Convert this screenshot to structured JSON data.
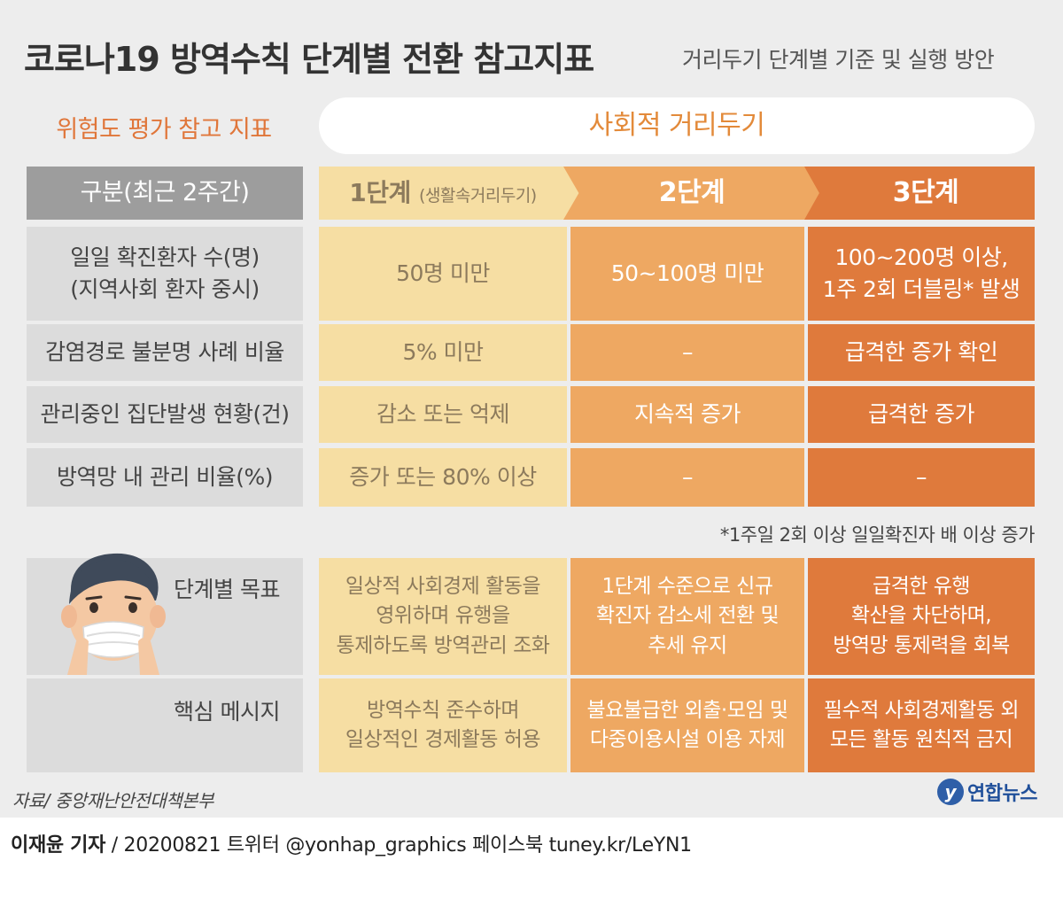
{
  "title": "코로나19 방역수칙 단계별 전환 참고지표",
  "subtitle": "거리두기 단계별 기준 및 실행 방안",
  "risk_label": "위험도 평가 참고 지표",
  "social_distancing_label": "사회적 거리두기",
  "header": {
    "category": "구분(최근 2주간)",
    "stage1_main": "1단계",
    "stage1_sub": "(생활속거리두기)",
    "stage2": "2단계",
    "stage3": "3단계"
  },
  "rows": [
    {
      "label": "일일 확진환자 수(명)\n(지역사회 환자 중시)",
      "s1": "50명 미만",
      "s2": "50~100명 미만",
      "s3": "100~200명 이상,\n1주 2회 더블링* 발생"
    },
    {
      "label": "감염경로 불분명 사례 비율",
      "s1": "5% 미만",
      "s2": "–",
      "s3": "급격한 증가 확인"
    },
    {
      "label": "관리중인 집단발생 현황(건)",
      "s1": "감소 또는 억제",
      "s2": "지속적 증가",
      "s3": "급격한 증가"
    },
    {
      "label": "방역망 내 관리 비율(%)",
      "s1": "증가 또는 80% 이상",
      "s2": "–",
      "s3": "–"
    }
  ],
  "footnote": "*1주일 2회 이상 일일확진자 배 이상 증가",
  "goals": {
    "label": "단계별 목표",
    "s1": "일상적 사회경제 활동을\n영위하며 유행을\n통제하도록 방역관리 조화",
    "s2": "1단계 수준으로 신규\n확진자 감소세 전환 및\n추세 유지",
    "s3": "급격한 유행\n확산을 차단하며,\n방역망 통제력을 회복"
  },
  "messages": {
    "label": "핵심 메시지",
    "s1": "방역수칙 준수하며\n일상적인 경제활동 허용",
    "s2": "불요불급한 외출·모임 및\n다중이용시설 이용 자제",
    "s3": "필수적 사회경제활동 외\n모든 활동 원칙적 금지"
  },
  "source": "자료/ 중앙재난안전대책본부",
  "logo_text": "연합뉴스",
  "credit": {
    "reporter": "이재윤 기자",
    "rest": " / 20200821   트위터 @yonhap_graphics  페이스북 tuney.kr/LeYN1"
  },
  "colors": {
    "background": "#ededed",
    "stage1": "#f6dea3",
    "stage2": "#eea862",
    "stage3": "#df7a3c",
    "accent": "#e0763a"
  },
  "icons": [
    "masked-person-icon",
    "yonhap-logo-icon"
  ]
}
